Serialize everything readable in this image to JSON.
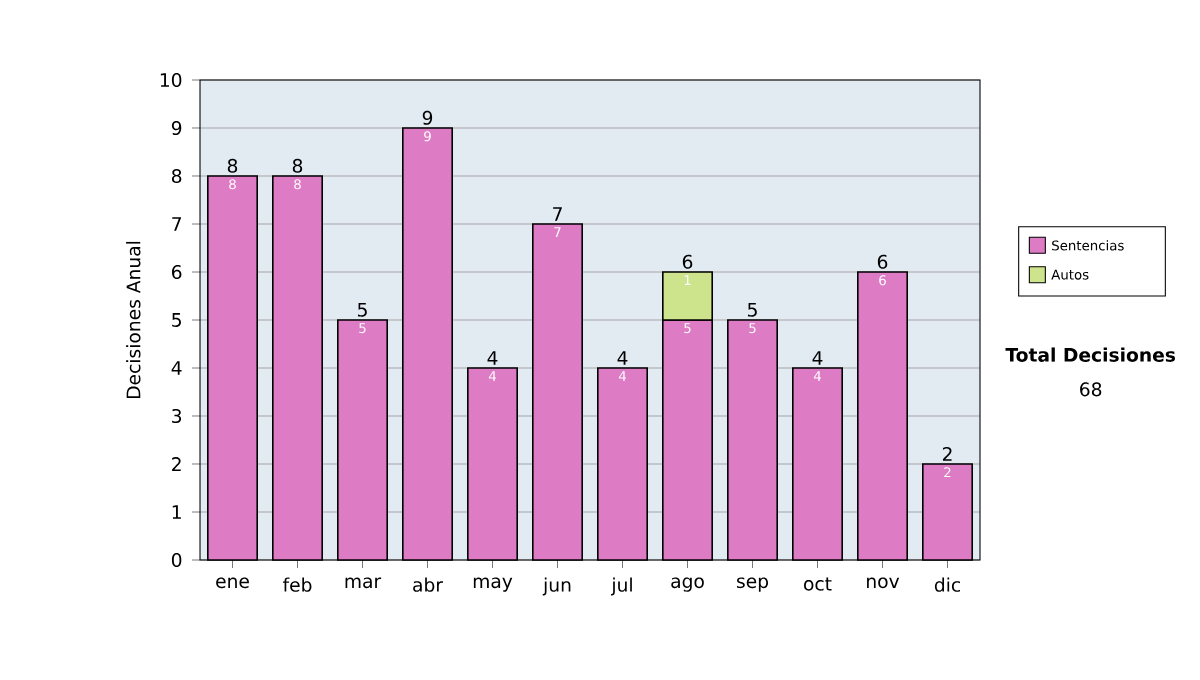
{
  "chart_data": {
    "type": "bar",
    "stacked": true,
    "ylabel": "Decisiones Anual",
    "categories": [
      "ene",
      "feb",
      "mar",
      "abr",
      "may",
      "jun",
      "jul",
      "ago",
      "sep",
      "oct",
      "nov",
      "dic"
    ],
    "series": [
      {
        "name": "Sentencias",
        "color": "#dd7cc4",
        "values": [
          8,
          8,
          5,
          9,
          4,
          7,
          4,
          5,
          5,
          4,
          6,
          2
        ],
        "value_labels": [
          "8",
          "8",
          "5",
          "9",
          "4",
          "7",
          "4",
          "5",
          "5",
          "4",
          "6",
          "2"
        ]
      },
      {
        "name": "Autos",
        "color": "#cde38c",
        "values": [
          null,
          null,
          null,
          null,
          null,
          null,
          null,
          1,
          null,
          null,
          null,
          null
        ],
        "value_labels": [
          null,
          null,
          null,
          null,
          null,
          null,
          null,
          "1",
          null,
          null,
          null,
          null
        ]
      }
    ],
    "totals": [
      "8",
      "8",
      "5",
      "9",
      "4",
      "7",
      "4",
      "6",
      "5",
      "4",
      "6",
      "2"
    ],
    "ylim": [
      0,
      10
    ],
    "yticks": [
      0,
      1,
      2,
      3,
      4,
      5,
      6,
      7,
      8,
      9,
      10
    ],
    "grid": "y",
    "legend": "right",
    "annotations": [
      "Total Decisiones",
      "68"
    ]
  }
}
